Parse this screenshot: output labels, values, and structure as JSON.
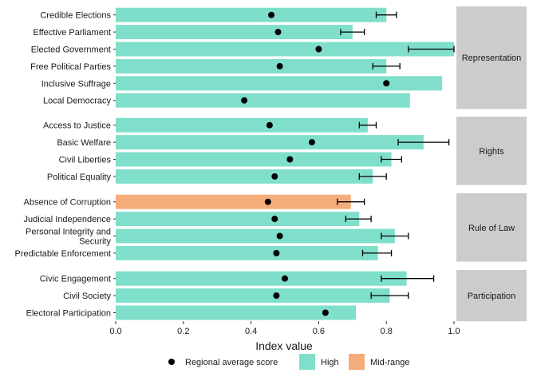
{
  "chart_data": {
    "type": "bar",
    "orientation": "horizontal",
    "xlabel": "Index value",
    "xlim": [
      0,
      1.0
    ],
    "xticks": [
      "0.0",
      "0.2",
      "0.4",
      "0.6",
      "0.8",
      "1.0"
    ],
    "xtick_values": [
      0,
      0.2,
      0.4,
      0.6,
      0.8,
      1.0
    ],
    "grid": false,
    "legend_position": "bottom",
    "legend": {
      "point_label": "Regional average score",
      "fill_labels": [
        "High",
        "Mid-range"
      ]
    },
    "colors": {
      "High": "#7fdfca",
      "Mid-range": "#f4ad7a",
      "facet_strip": "#cccccc",
      "point": "#000000"
    },
    "facets": [
      {
        "name": "Representation",
        "rows": [
          {
            "category": "Credible Elections",
            "value": 0.8,
            "level": "High",
            "regional_average": 0.46,
            "error_low": 0.77,
            "error_high": 0.83
          },
          {
            "category": "Effective Parliament",
            "value": 0.7,
            "level": "High",
            "regional_average": 0.48,
            "error_low": 0.665,
            "error_high": 0.735
          },
          {
            "category": "Elected Government",
            "value": 1.0,
            "level": "High",
            "regional_average": 0.6,
            "error_low": 0.865,
            "error_high": 1.0
          },
          {
            "category": "Free Political Parties",
            "value": 0.8,
            "level": "High",
            "regional_average": 0.485,
            "error_low": 0.76,
            "error_high": 0.84
          },
          {
            "category": "Inclusive Suffrage",
            "value": 0.965,
            "level": "High",
            "regional_average": 0.8,
            "error_low": null,
            "error_high": null
          },
          {
            "category": "Local Democracy",
            "value": 0.87,
            "level": "High",
            "regional_average": 0.38,
            "error_low": null,
            "error_high": null
          }
        ]
      },
      {
        "name": "Rights",
        "rows": [
          {
            "category": "Access to Justice",
            "value": 0.745,
            "level": "High",
            "regional_average": 0.455,
            "error_low": 0.72,
            "error_high": 0.77
          },
          {
            "category": "Basic Welfare",
            "value": 0.91,
            "level": "High",
            "regional_average": 0.58,
            "error_low": 0.835,
            "error_high": 0.985
          },
          {
            "category": "Civil Liberties",
            "value": 0.815,
            "level": "High",
            "regional_average": 0.515,
            "error_low": 0.785,
            "error_high": 0.845
          },
          {
            "category": "Political Equality",
            "value": 0.76,
            "level": "High",
            "regional_average": 0.47,
            "error_low": 0.72,
            "error_high": 0.8
          }
        ]
      },
      {
        "name": "Rule of Law",
        "rows": [
          {
            "category": "Absence of Corruption",
            "value": 0.695,
            "level": "Mid-range",
            "regional_average": 0.45,
            "error_low": 0.655,
            "error_high": 0.735
          },
          {
            "category": "Judicial Independence",
            "value": 0.72,
            "level": "High",
            "regional_average": 0.47,
            "error_low": 0.68,
            "error_high": 0.755
          },
          {
            "category": "Personal Integrity and\nSecurity",
            "value": 0.825,
            "level": "High",
            "regional_average": 0.485,
            "error_low": 0.785,
            "error_high": 0.865
          },
          {
            "category": "Predictable Enforcement",
            "value": 0.775,
            "level": "High",
            "regional_average": 0.475,
            "error_low": 0.73,
            "error_high": 0.815
          }
        ]
      },
      {
        "name": "Participation",
        "rows": [
          {
            "category": "Civic Engagement",
            "value": 0.86,
            "level": "High",
            "regional_average": 0.5,
            "error_low": 0.785,
            "error_high": 0.94
          },
          {
            "category": "Civil Society",
            "value": 0.81,
            "level": "High",
            "regional_average": 0.475,
            "error_low": 0.755,
            "error_high": 0.865
          },
          {
            "category": "Electoral Participation",
            "value": 0.71,
            "level": "High",
            "regional_average": 0.62,
            "error_low": null,
            "error_high": null
          }
        ]
      }
    ]
  }
}
